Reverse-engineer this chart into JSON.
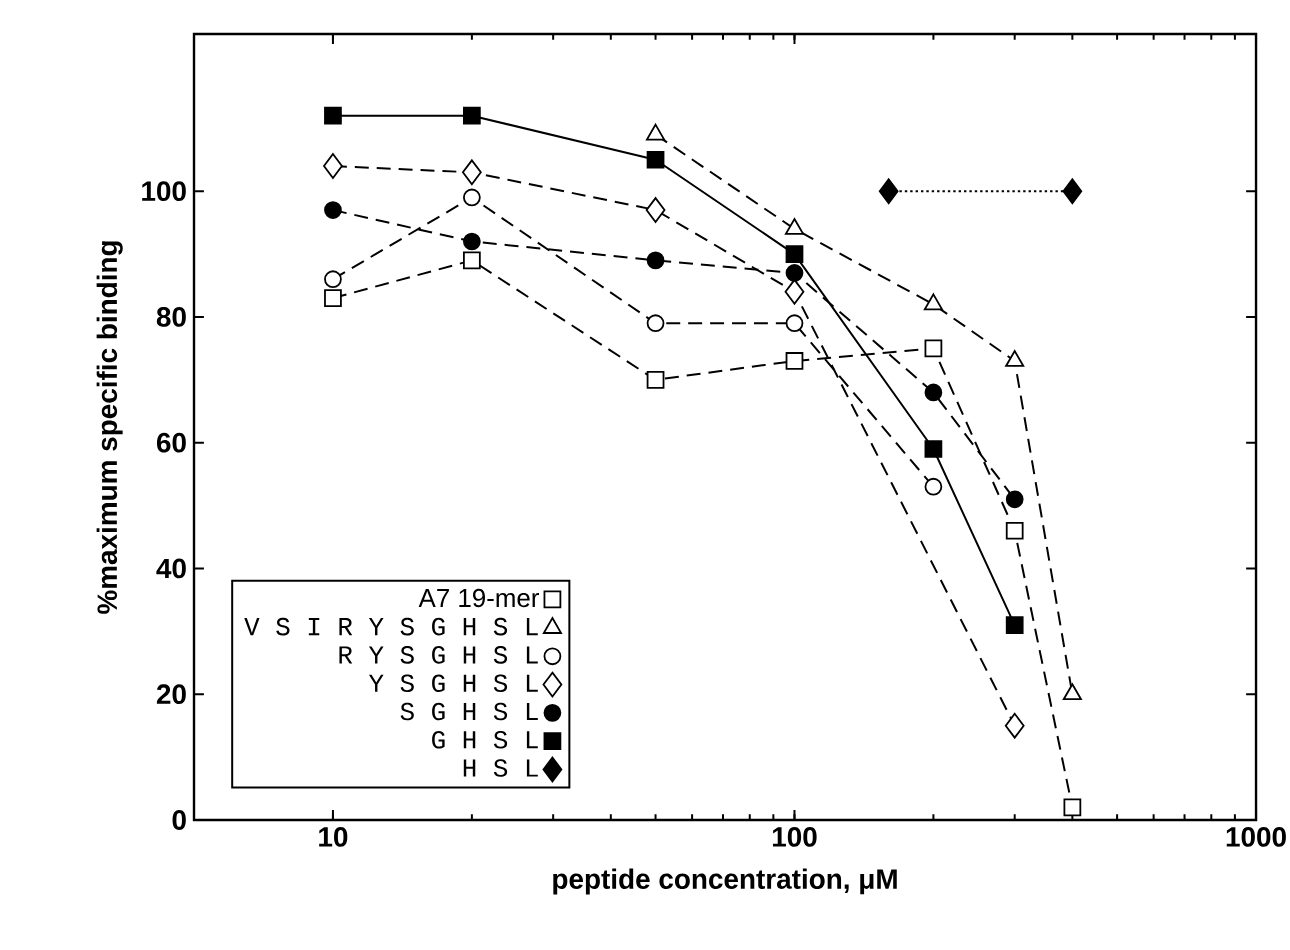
{
  "chart_data": {
    "type": "line",
    "xlabel": "peptide concentration, μM",
    "ylabel": "%maximum specific binding",
    "log": "x",
    "xlim": [
      5,
      1000
    ],
    "xticks": [
      10,
      100,
      1000
    ],
    "ylim": [
      0,
      125
    ],
    "yticks": [
      0,
      20,
      40,
      60,
      80,
      100
    ],
    "legend": "bottom left",
    "grid": false,
    "series": [
      {
        "name": "A7  19-mer",
        "color": "#000000",
        "colors": [
          "#ffffff",
          "#ffffff",
          "#ffffff",
          "#ffffff",
          "#ffffff",
          "#ffffff",
          "#ffffff"
        ],
        "marker": "square",
        "line_style": "dashed",
        "x": [
          10,
          20,
          50,
          100,
          200,
          300,
          400
        ],
        "values": [
          83,
          89,
          70,
          73,
          75,
          46,
          2
        ]
      },
      {
        "name": "V S I R Y S G H S L",
        "color": "#000000",
        "colors": [
          "#ffffff",
          "#ffffff",
          "#ffffff",
          "#ffffff",
          "#ffffff"
        ],
        "marker": "triangle",
        "line_style": "dashed",
        "x": [
          50,
          100,
          200,
          300,
          400
        ],
        "values": [
          109,
          94,
          82,
          73,
          20
        ]
      },
      {
        "name": "R Y S G H S L",
        "color": "#000000",
        "colors": [
          "#ffffff",
          "#ffffff",
          "#ffffff",
          "#ffffff",
          "#ffffff"
        ],
        "marker": "circle",
        "line_style": "dashed",
        "x": [
          10,
          20,
          50,
          100,
          200
        ],
        "values": [
          86,
          99,
          79,
          79,
          53
        ]
      },
      {
        "name": "Y S G H S L",
        "color": "#000000",
        "colors": [
          "#ffffff",
          "#ffffff",
          "#ffffff",
          "#ffffff",
          "#ffffff"
        ],
        "marker": "diamond",
        "line_style": "dashed",
        "x": [
          10,
          20,
          50,
          100,
          300
        ],
        "values": [
          104,
          103,
          97,
          84,
          15
        ]
      },
      {
        "name": "S G H S L",
        "color": "#000000",
        "marker": "circle",
        "line_style": "dashed",
        "x": [
          10,
          20,
          50,
          100,
          200,
          300
        ],
        "values": [
          97,
          92,
          89,
          87,
          68,
          51
        ]
      },
      {
        "name": "G H S L",
        "color": "#000000",
        "marker": "square",
        "line_style": "solid",
        "x": [
          10,
          20,
          50,
          100,
          200,
          300
        ],
        "values": [
          112,
          112,
          105,
          90,
          59,
          31
        ]
      },
      {
        "name": "H S L",
        "color": "#000000",
        "marker": "diamond",
        "line_style": "dotted",
        "x": [
          160,
          400
        ],
        "values": [
          100,
          100
        ]
      }
    ]
  }
}
